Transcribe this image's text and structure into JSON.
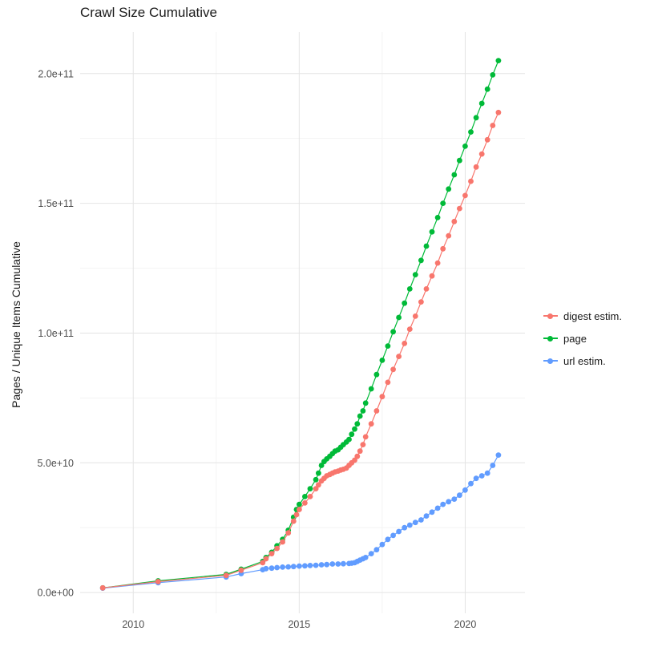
{
  "chart_data": {
    "type": "line",
    "markers": true,
    "title": "Crawl Size Cumulative",
    "xlabel": "",
    "ylabel": "Pages / Unique Items Cumulative",
    "xlim": [
      2008.4,
      2021.8
    ],
    "ylim": [
      -8000000000.0,
      216000000000.0
    ],
    "grid": true,
    "legend_position": "right",
    "x_ticks": [
      {
        "value": 2010,
        "label": "2010"
      },
      {
        "value": 2015,
        "label": "2015"
      },
      {
        "value": 2020,
        "label": "2020"
      }
    ],
    "y_ticks": [
      {
        "value": 0,
        "label": "0.0e+00"
      },
      {
        "value": 50000000000.0,
        "label": "5.0e+10"
      },
      {
        "value": 100000000000.0,
        "label": "1.0e+11"
      },
      {
        "value": 150000000000.0,
        "label": "1.5e+11"
      },
      {
        "value": 200000000000.0,
        "label": "2.0e+11"
      }
    ],
    "x_minor_gridlines": [
      2012.5,
      2017.5
    ],
    "y_minor_gridlines": [
      25000000000.0,
      75000000000.0,
      125000000000.0,
      175000000000.0
    ],
    "colors": {
      "grid_major": "#E4E4E4",
      "grid_minor": "#F1F1F1",
      "tick_text": "#4D4D4D",
      "title_text": "#1A1A1A",
      "background": "#FFFFFF"
    },
    "draw_order": [
      1,
      2,
      0
    ],
    "series": [
      {
        "name": "digest estim.",
        "color": "#F8766D",
        "points": [
          [
            2009.08,
            1800000000.0
          ],
          [
            2010.75,
            4200000000.0
          ],
          [
            2012.8,
            6600000000.0
          ],
          [
            2013.25,
            8600000000.0
          ],
          [
            2013.9,
            11500000000.0
          ],
          [
            2014.0,
            13000000000.0
          ],
          [
            2014.17,
            15000000000.0
          ],
          [
            2014.33,
            17000000000.0
          ],
          [
            2014.5,
            19500000000.0
          ],
          [
            2014.67,
            23000000000.0
          ],
          [
            2014.83,
            27500000000.0
          ],
          [
            2014.92,
            30000000000.0
          ],
          [
            2015.0,
            32000000000.0
          ],
          [
            2015.17,
            34500000000.0
          ],
          [
            2015.33,
            37000000000.0
          ],
          [
            2015.5,
            40000000000.0
          ],
          [
            2015.58,
            41500000000.0
          ],
          [
            2015.67,
            43000000000.0
          ],
          [
            2015.75,
            44000000000.0
          ],
          [
            2015.83,
            45000000000.0
          ],
          [
            2015.92,
            45500000000.0
          ],
          [
            2016.0,
            46000000000.0
          ],
          [
            2016.08,
            46500000000.0
          ],
          [
            2016.17,
            46800000000.0
          ],
          [
            2016.25,
            47200000000.0
          ],
          [
            2016.33,
            47500000000.0
          ],
          [
            2016.42,
            48000000000.0
          ],
          [
            2016.5,
            49000000000.0
          ],
          [
            2016.58,
            50000000000.0
          ],
          [
            2016.67,
            51000000000.0
          ],
          [
            2016.75,
            52500000000.0
          ],
          [
            2016.83,
            54500000000.0
          ],
          [
            2016.92,
            57000000000.0
          ],
          [
            2017.0,
            60000000000.0
          ],
          [
            2017.17,
            65000000000.0
          ],
          [
            2017.33,
            70000000000.0
          ],
          [
            2017.5,
            75500000000.0
          ],
          [
            2017.67,
            81000000000.0
          ],
          [
            2017.83,
            86000000000.0
          ],
          [
            2018.0,
            91000000000.0
          ],
          [
            2018.17,
            96000000000.0
          ],
          [
            2018.33,
            101500000000.0
          ],
          [
            2018.5,
            106500000000.0
          ],
          [
            2018.67,
            112000000000.0
          ],
          [
            2018.83,
            117000000000.0
          ],
          [
            2019.0,
            122000000000.0
          ],
          [
            2019.17,
            127000000000.0
          ],
          [
            2019.33,
            132500000000.0
          ],
          [
            2019.5,
            137500000000.0
          ],
          [
            2019.67,
            143000000000.0
          ],
          [
            2019.83,
            148000000000.0
          ],
          [
            2020.0,
            153000000000.0
          ],
          [
            2020.17,
            158500000000.0
          ],
          [
            2020.33,
            164000000000.0
          ],
          [
            2020.5,
            169000000000.0
          ],
          [
            2020.67,
            174500000000.0
          ],
          [
            2020.83,
            180000000000.0
          ],
          [
            2021.0,
            185000000000.0
          ]
        ]
      },
      {
        "name": "page",
        "color": "#00BA38",
        "points": [
          [
            2009.08,
            1800000000.0
          ],
          [
            2010.75,
            4500000000.0
          ],
          [
            2012.8,
            7000000000.0
          ],
          [
            2013.25,
            9000000000.0
          ],
          [
            2013.9,
            12000000000.0
          ],
          [
            2014.0,
            13500000000.0
          ],
          [
            2014.17,
            15500000000.0
          ],
          [
            2014.33,
            18000000000.0
          ],
          [
            2014.5,
            20500000000.0
          ],
          [
            2014.67,
            24000000000.0
          ],
          [
            2014.83,
            29000000000.0
          ],
          [
            2014.92,
            32000000000.0
          ],
          [
            2015.0,
            34000000000.0
          ],
          [
            2015.17,
            37000000000.0
          ],
          [
            2015.33,
            40000000000.0
          ],
          [
            2015.5,
            43500000000.0
          ],
          [
            2015.58,
            46000000000.0
          ],
          [
            2015.67,
            49000000000.0
          ],
          [
            2015.75,
            50500000000.0
          ],
          [
            2015.83,
            51500000000.0
          ],
          [
            2015.92,
            52500000000.0
          ],
          [
            2016.0,
            53500000000.0
          ],
          [
            2016.08,
            54500000000.0
          ],
          [
            2016.17,
            55000000000.0
          ],
          [
            2016.25,
            56000000000.0
          ],
          [
            2016.33,
            57000000000.0
          ],
          [
            2016.42,
            58000000000.0
          ],
          [
            2016.5,
            59000000000.0
          ],
          [
            2016.58,
            61000000000.0
          ],
          [
            2016.67,
            63000000000.0
          ],
          [
            2016.75,
            65000000000.0
          ],
          [
            2016.83,
            68000000000.0
          ],
          [
            2016.92,
            70000000000.0
          ],
          [
            2017.0,
            73000000000.0
          ],
          [
            2017.17,
            78500000000.0
          ],
          [
            2017.33,
            84000000000.0
          ],
          [
            2017.5,
            89500000000.0
          ],
          [
            2017.67,
            95000000000.0
          ],
          [
            2017.83,
            100500000000.0
          ],
          [
            2018.0,
            106000000000.0
          ],
          [
            2018.17,
            111500000000.0
          ],
          [
            2018.33,
            117000000000.0
          ],
          [
            2018.5,
            122500000000.0
          ],
          [
            2018.67,
            128000000000.0
          ],
          [
            2018.83,
            133500000000.0
          ],
          [
            2019.0,
            139000000000.0
          ],
          [
            2019.17,
            144500000000.0
          ],
          [
            2019.33,
            150000000000.0
          ],
          [
            2019.5,
            155500000000.0
          ],
          [
            2019.67,
            161000000000.0
          ],
          [
            2019.83,
            166500000000.0
          ],
          [
            2020.0,
            172000000000.0
          ],
          [
            2020.17,
            177500000000.0
          ],
          [
            2020.33,
            183000000000.0
          ],
          [
            2020.5,
            188500000000.0
          ],
          [
            2020.67,
            194000000000.0
          ],
          [
            2020.83,
            199500000000.0
          ],
          [
            2021.0,
            205000000000.0
          ]
        ]
      },
      {
        "name": "url estim.",
        "color": "#619CFF",
        "points": [
          [
            2009.08,
            1700000000.0
          ],
          [
            2010.75,
            3800000000.0
          ],
          [
            2012.8,
            6000000000.0
          ],
          [
            2013.25,
            7300000000.0
          ],
          [
            2013.9,
            8800000000.0
          ],
          [
            2014.0,
            9200000000.0
          ],
          [
            2014.17,
            9400000000.0
          ],
          [
            2014.33,
            9600000000.0
          ],
          [
            2014.5,
            9800000000.0
          ],
          [
            2014.67,
            9900000000.0
          ],
          [
            2014.83,
            10000000000.0
          ],
          [
            2015.0,
            10200000000.0
          ],
          [
            2015.17,
            10300000000.0
          ],
          [
            2015.33,
            10400000000.0
          ],
          [
            2015.5,
            10500000000.0
          ],
          [
            2015.67,
            10700000000.0
          ],
          [
            2015.83,
            10800000000.0
          ],
          [
            2016.0,
            11000000000.0
          ],
          [
            2016.17,
            11000000000.0
          ],
          [
            2016.33,
            11100000000.0
          ],
          [
            2016.5,
            11200000000.0
          ],
          [
            2016.58,
            11300000000.0
          ],
          [
            2016.67,
            11500000000.0
          ],
          [
            2016.75,
            12000000000.0
          ],
          [
            2016.83,
            12500000000.0
          ],
          [
            2016.92,
            13000000000.0
          ],
          [
            2017.0,
            13500000000.0
          ],
          [
            2017.17,
            15000000000.0
          ],
          [
            2017.33,
            16500000000.0
          ],
          [
            2017.5,
            18500000000.0
          ],
          [
            2017.67,
            20500000000.0
          ],
          [
            2017.83,
            22000000000.0
          ],
          [
            2018.0,
            23500000000.0
          ],
          [
            2018.17,
            25000000000.0
          ],
          [
            2018.33,
            26000000000.0
          ],
          [
            2018.5,
            27000000000.0
          ],
          [
            2018.67,
            28000000000.0
          ],
          [
            2018.83,
            29500000000.0
          ],
          [
            2019.0,
            31000000000.0
          ],
          [
            2019.17,
            32500000000.0
          ],
          [
            2019.33,
            34000000000.0
          ],
          [
            2019.5,
            35000000000.0
          ],
          [
            2019.67,
            36000000000.0
          ],
          [
            2019.83,
            37500000000.0
          ],
          [
            2020.0,
            39500000000.0
          ],
          [
            2020.17,
            42000000000.0
          ],
          [
            2020.33,
            44000000000.0
          ],
          [
            2020.5,
            45000000000.0
          ],
          [
            2020.67,
            46000000000.0
          ],
          [
            2020.83,
            49000000000.0
          ],
          [
            2021.0,
            53000000000.0
          ]
        ]
      }
    ]
  }
}
